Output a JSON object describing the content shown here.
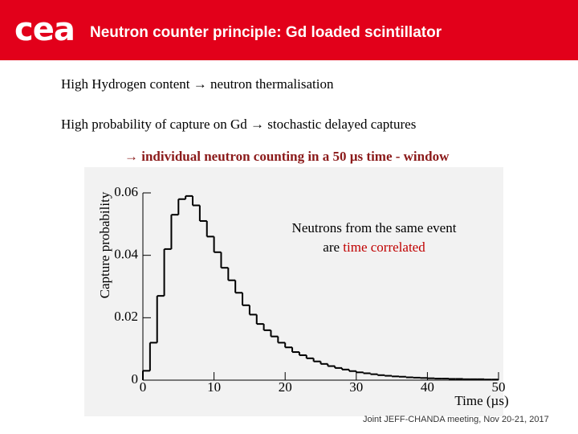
{
  "header": {
    "logo": "cea",
    "title": "Neutron counter principle:  Gd loaded scintillator"
  },
  "bullets": [
    "High Hydrogen content → neutron thermalisation",
    "High probability of capture on Gd → stochastic delayed captures"
  ],
  "emphasis": "→ individual neutron counting in a 50 µs time - window",
  "footer": "Joint JEFF-CHANDA meeting, Nov 20-21, 2017",
  "chart_data": {
    "type": "histogram",
    "x_label": "Time (µs)",
    "y_label": "Capture probability",
    "annotation": {
      "line1": "Neutrons from the same event",
      "line2": "are ",
      "line2_highlight": "time correlated"
    },
    "bins": [
      0,
      1,
      2,
      3,
      4,
      5,
      6,
      7,
      8,
      9,
      10,
      11,
      12,
      13,
      14,
      15,
      16,
      17,
      18,
      19,
      20,
      21,
      22,
      23,
      24,
      25,
      26,
      27,
      28,
      29,
      30,
      31,
      32,
      33,
      34,
      35,
      36,
      37,
      38,
      39,
      40,
      41,
      42,
      43,
      44,
      45,
      46,
      47,
      48,
      49,
      50
    ],
    "values": [
      0.003,
      0.012,
      0.027,
      0.042,
      0.053,
      0.058,
      0.059,
      0.056,
      0.051,
      0.046,
      0.041,
      0.036,
      0.032,
      0.028,
      0.024,
      0.021,
      0.018,
      0.016,
      0.014,
      0.012,
      0.0105,
      0.009,
      0.008,
      0.007,
      0.006,
      0.0052,
      0.0045,
      0.0039,
      0.0034,
      0.0029,
      0.0025,
      0.0022,
      0.0019,
      0.0016,
      0.0014,
      0.0012,
      0.0011,
      0.0009,
      0.0008,
      0.0007,
      0.0006,
      0.0005,
      0.0005,
      0.0004,
      0.0004,
      0.0003,
      0.0003,
      0.0003,
      0.0002,
      0.0002
    ],
    "color": "#000000",
    "xlim": [
      0,
      50
    ],
    "ylim": [
      0,
      0.06
    ],
    "xticks": [
      0,
      10,
      20,
      30,
      40,
      50
    ],
    "yticks": [
      0,
      0.02,
      0.04,
      0.06
    ]
  }
}
